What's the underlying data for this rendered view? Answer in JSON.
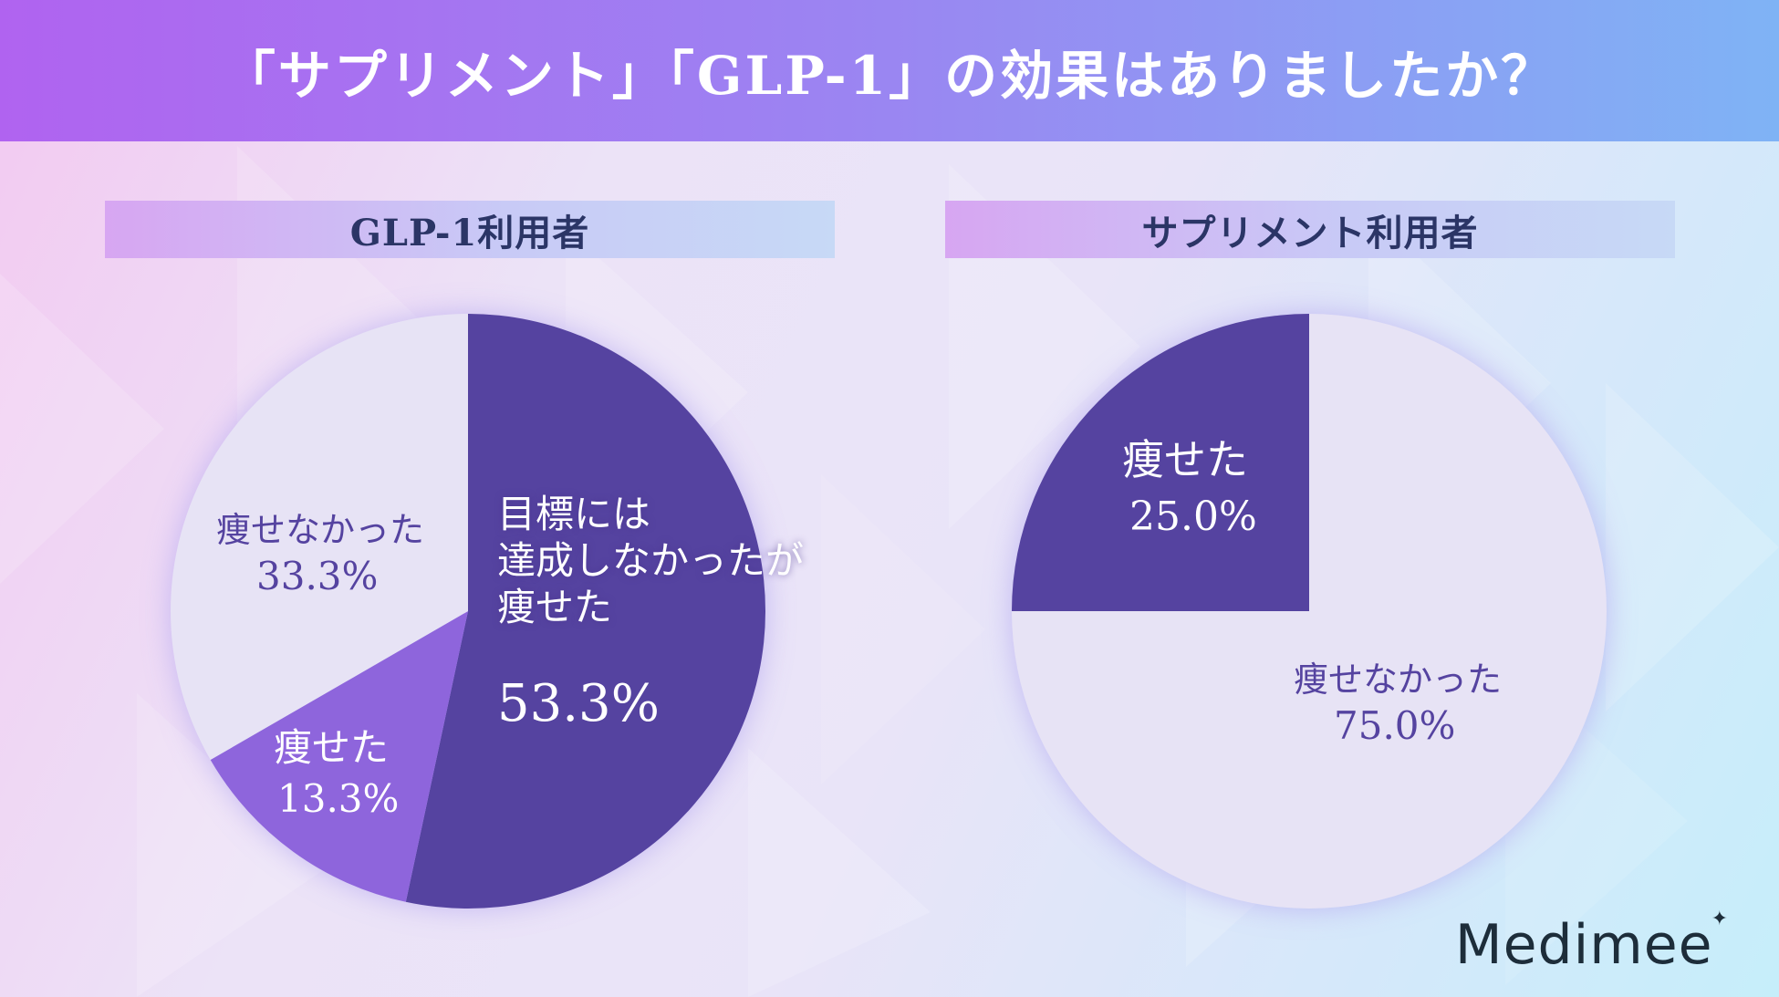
{
  "header": {
    "title": "「サプリメント」「GLP-1」の効果はありましたか？"
  },
  "brand": {
    "logo_text": "Medimee"
  },
  "colors": {
    "dark_purple": "#5543a0",
    "mid_purple": "#8e65dc",
    "light_lavender": "#e7e3f5",
    "header_text": "#ffffff",
    "label_text": "#2b3566"
  },
  "chart_data": [
    {
      "type": "pie",
      "title": "GLP-1利用者",
      "slices": [
        {
          "label": "目標には\n達成しなかったが\n痩せた",
          "value": 53.3,
          "value_label": "53.3%",
          "color": "#5543a0"
        },
        {
          "label": "痩せた",
          "value": 13.3,
          "value_label": "13.3%",
          "color": "#8e65dc"
        },
        {
          "label": "痩せなかった",
          "value": 33.3,
          "value_label": "33.3%",
          "color": "#e7e3f5"
        }
      ]
    },
    {
      "type": "pie",
      "title": "サプリメント利用者",
      "slices": [
        {
          "label": "痩せなかった",
          "value": 75.0,
          "value_label": "75.0%",
          "color": "#e7e3f5"
        },
        {
          "label": "痩せた",
          "value": 25.0,
          "value_label": "25.0%",
          "color": "#5543a0"
        }
      ]
    }
  ]
}
